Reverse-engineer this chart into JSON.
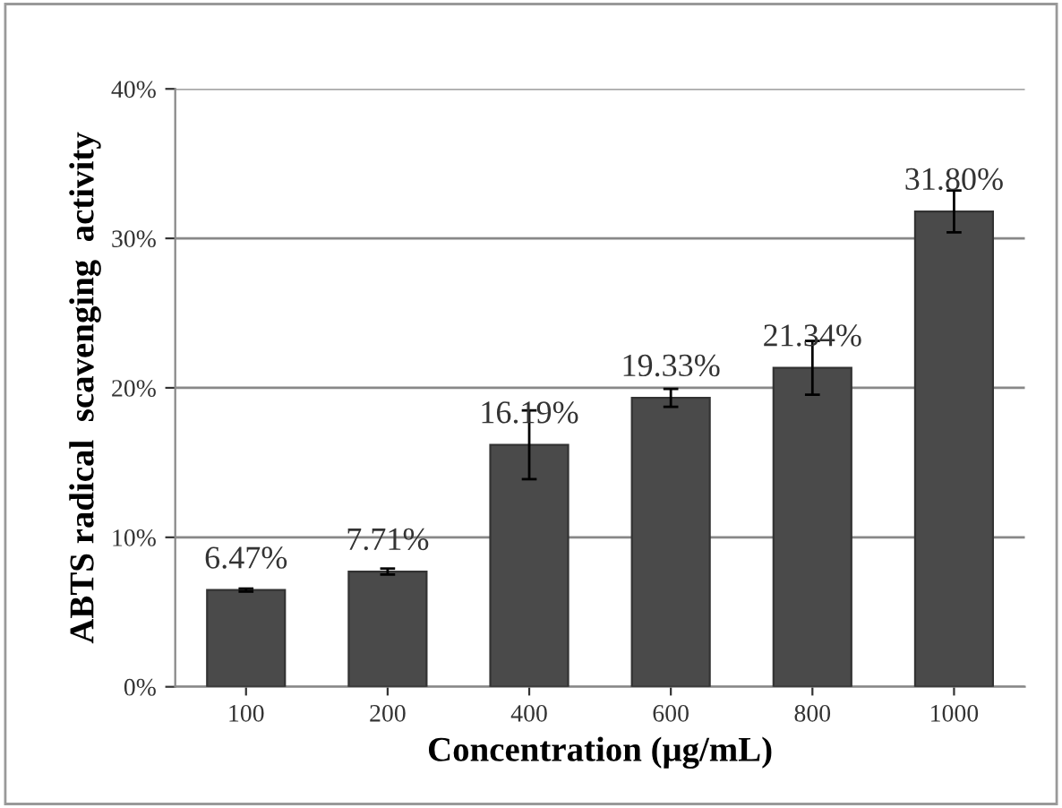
{
  "chart_data": {
    "type": "bar",
    "xlabel": "Concentration (μg/mL)",
    "ylabel": "ABTS radical  scavenging  activity",
    "categories": [
      "100",
      "200",
      "400",
      "600",
      "800",
      "1000"
    ],
    "values": [
      6.47,
      7.71,
      16.19,
      19.33,
      21.34,
      31.8
    ],
    "errors": [
      0.1,
      0.2,
      2.3,
      0.6,
      1.8,
      1.4
    ],
    "value_labels": [
      "6.47%",
      "7.71%",
      "16.19%",
      "19.33%",
      "21.34%",
      "31.80%"
    ],
    "color": "#4a4a4a",
    "ylim": [
      0,
      40
    ],
    "yticks": [
      {
        "value": 0,
        "label": "0%"
      },
      {
        "value": 10,
        "label": "10%"
      },
      {
        "value": 20,
        "label": "20%"
      },
      {
        "value": 30,
        "label": "30%"
      },
      {
        "value": 40,
        "label": "40%"
      }
    ],
    "grid": "y",
    "legend": false
  }
}
